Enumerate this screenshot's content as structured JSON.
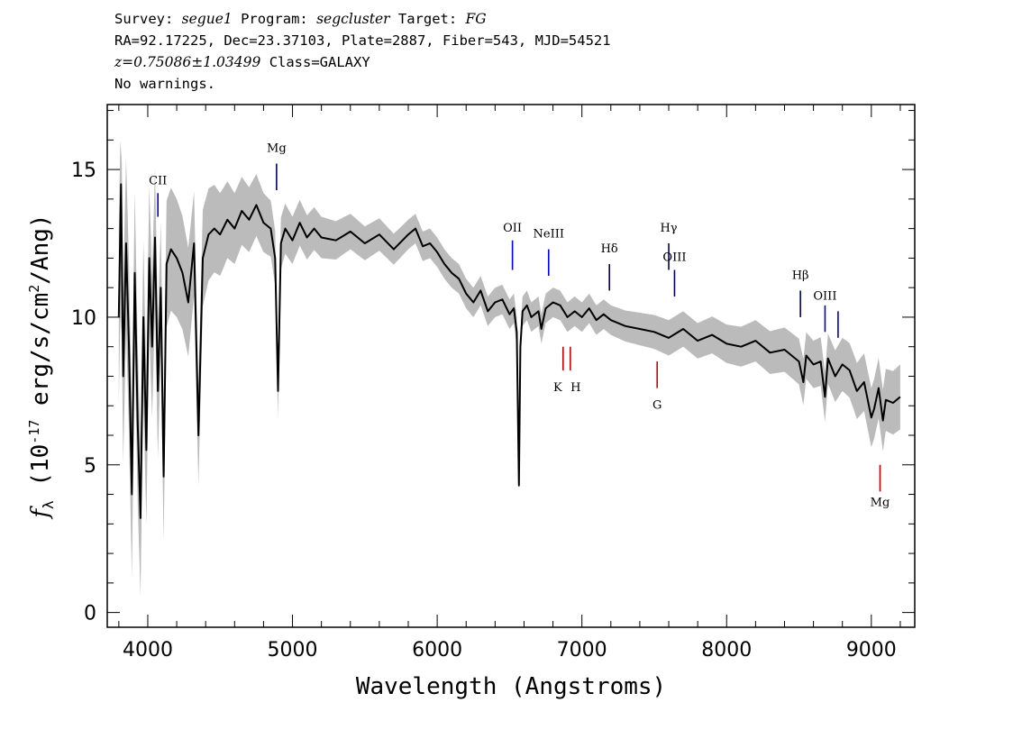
{
  "header": {
    "survey_label": "Survey:",
    "survey": "segue1",
    "program_label": "Program:",
    "program": "segcluster",
    "target_label": "Target:",
    "target": "FG",
    "line2": "RA=92.17225, Dec=23.37103, Plate=2887, Fiber=543, MJD=54521",
    "redshift": "z=0.75086±1.03499",
    "class_text": "Class=GALAXY",
    "warnings": "No warnings."
  },
  "chart_data": {
    "type": "line",
    "xlabel": "Wavelength (Angstroms)",
    "ylabel_main": "f",
    "ylabel_sub": "λ",
    "ylabel_units_pre": " (10",
    "ylabel_exp1": "-17",
    "ylabel_units_mid": " erg/s/cm",
    "ylabel_exp2": "2",
    "ylabel_units_post": "/Ang)",
    "xlim": [
      3720,
      9300
    ],
    "ylim": [
      -0.5,
      17.2
    ],
    "xticks": [
      4000,
      5000,
      6000,
      7000,
      8000,
      9000
    ],
    "xtick_labels": [
      "4000",
      "5000",
      "6000",
      "7000",
      "8000",
      "9000"
    ],
    "yticks": [
      0,
      5,
      10,
      15
    ],
    "ytick_labels": [
      "0",
      "5",
      "10",
      "15"
    ],
    "series": [
      {
        "color": "#000000",
        "x": [
          3800,
          3815,
          3830,
          3850,
          3870,
          3890,
          3910,
          3930,
          3950,
          3970,
          3990,
          4010,
          4030,
          4050,
          4070,
          4090,
          4110,
          4130,
          4160,
          4200,
          4240,
          4280,
          4320,
          4350,
          4380,
          4420,
          4460,
          4500,
          4550,
          4600,
          4650,
          4700,
          4750,
          4800,
          4850,
          4880,
          4900,
          4920,
          4950,
          5000,
          5050,
          5100,
          5150,
          5200,
          5300,
          5400,
          5500,
          5600,
          5700,
          5800,
          5850,
          5900,
          5950,
          6000,
          6050,
          6100,
          6150,
          6200,
          6250,
          6300,
          6350,
          6400,
          6450,
          6500,
          6530,
          6550,
          6565,
          6575,
          6590,
          6620,
          6650,
          6700,
          6720,
          6750,
          6800,
          6850,
          6900,
          6950,
          7000,
          7050,
          7100,
          7150,
          7200,
          7300,
          7400,
          7500,
          7600,
          7700,
          7800,
          7900,
          8000,
          8100,
          8200,
          8300,
          8400,
          8500,
          8530,
          8550,
          8600,
          8650,
          8680,
          8700,
          8750,
          8800,
          8850,
          8900,
          8950,
          9000,
          9020,
          9050,
          9080,
          9100,
          9150,
          9200
        ],
        "y": [
          10.0,
          14.5,
          8.0,
          12.5,
          9.0,
          4.0,
          11.5,
          6.5,
          3.2,
          10.0,
          5.5,
          12.0,
          9.0,
          12.7,
          7.5,
          11.0,
          4.6,
          11.8,
          12.3,
          12.0,
          11.5,
          10.5,
          12.5,
          6.0,
          12.0,
          12.8,
          13.0,
          12.8,
          13.3,
          13.0,
          13.6,
          13.3,
          13.8,
          13.2,
          13.0,
          12.0,
          7.5,
          12.5,
          13.0,
          12.6,
          13.2,
          12.7,
          13.0,
          12.7,
          12.6,
          12.9,
          12.5,
          12.8,
          12.3,
          12.8,
          13.0,
          12.4,
          12.5,
          12.2,
          11.8,
          11.5,
          11.3,
          10.8,
          10.5,
          10.9,
          10.2,
          10.5,
          10.6,
          10.1,
          10.3,
          9.5,
          4.3,
          9.0,
          10.2,
          10.4,
          10.0,
          10.2,
          9.6,
          10.3,
          10.5,
          10.4,
          10.0,
          10.2,
          10.0,
          10.3,
          9.9,
          10.1,
          9.9,
          9.7,
          9.6,
          9.5,
          9.3,
          9.6,
          9.2,
          9.4,
          9.1,
          9.0,
          9.2,
          8.8,
          8.9,
          8.5,
          7.8,
          8.7,
          8.4,
          8.5,
          7.3,
          8.6,
          8.0,
          8.4,
          8.2,
          7.5,
          7.8,
          6.6,
          6.9,
          7.6,
          6.5,
          7.2,
          7.1,
          7.3
        ]
      }
    ],
    "error_band": {
      "color": "#bbbbbb",
      "x": [
        3800,
        3900,
        4000,
        4100,
        4200,
        4300,
        4400,
        4500,
        4600,
        4700,
        4800,
        4900,
        5000,
        5200,
        5400,
        5600,
        5800,
        5900,
        6000,
        6200,
        6400,
        6600,
        6800,
        7000,
        7200,
        7400,
        7600,
        7800,
        8000,
        8200,
        8400,
        8600,
        8800,
        9000,
        9200
      ],
      "halfwidth": [
        3.0,
        2.8,
        2.5,
        2.2,
        2.0,
        1.8,
        1.6,
        1.4,
        1.2,
        1.1,
        1.0,
        0.9,
        0.8,
        0.7,
        0.6,
        0.55,
        0.5,
        0.5,
        0.5,
        0.5,
        0.5,
        0.5,
        0.5,
        0.5,
        0.5,
        0.55,
        0.6,
        0.6,
        0.65,
        0.7,
        0.75,
        0.8,
        0.9,
        1.0,
        1.1
      ]
    },
    "line_markers": [
      {
        "label": "CII",
        "x": 4070,
        "y1": 13.4,
        "y2": 14.2,
        "color": "#0000cc",
        "label_y": 14.5
      },
      {
        "label": "Mg",
        "x": 4890,
        "y1": 14.3,
        "y2": 15.2,
        "color": "#000066",
        "label_y": 15.6
      },
      {
        "label": "OII",
        "x": 6520,
        "y1": 11.6,
        "y2": 12.6,
        "color": "#0000ff",
        "label_y": 12.9
      },
      {
        "label": "NeIII",
        "x": 6770,
        "y1": 11.4,
        "y2": 12.3,
        "color": "#0000ff",
        "label_y": 12.7
      },
      {
        "label": "Hδ",
        "x": 7190,
        "y1": 10.9,
        "y2": 11.8,
        "color": "#000066",
        "label_y": 12.2
      },
      {
        "label": "Hγ",
        "x": 7600,
        "y1": 11.6,
        "y2": 12.5,
        "color": "#000066",
        "label_y": 12.9
      },
      {
        "label": "OIII",
        "x": 7640,
        "y1": 10.7,
        "y2": 11.6,
        "color": "#000066",
        "label_y": 11.9
      },
      {
        "label": "Hβ",
        "x": 8510,
        "y1": 10.0,
        "y2": 10.9,
        "color": "#000066",
        "label_y": 11.3
      },
      {
        "label": "OIII",
        "x": 8680,
        "y1": 9.5,
        "y2": 10.4,
        "color": "#0000cc",
        "label_y": 10.6
      },
      {
        "label": "",
        "x": 8770,
        "y1": 9.3,
        "y2": 10.2,
        "color": "#0000cc",
        "label_y": 10.6
      },
      {
        "label": "K",
        "x": 6870,
        "y1": 8.2,
        "y2": 9.0,
        "color": "#cc0000",
        "label_y": 7.5,
        "label_dx": -6
      },
      {
        "label": "H",
        "x": 6920,
        "y1": 8.2,
        "y2": 9.0,
        "color": "#cc0000",
        "label_y": 7.5,
        "label_dx": 6
      },
      {
        "label": "G",
        "x": 7520,
        "y1": 7.6,
        "y2": 8.5,
        "color": "#cc0000",
        "label_y": 6.9
      },
      {
        "label": "Mg",
        "x": 9060,
        "y1": 4.1,
        "y2": 5.0,
        "color": "#cc0000",
        "label_y": 3.6
      }
    ]
  }
}
